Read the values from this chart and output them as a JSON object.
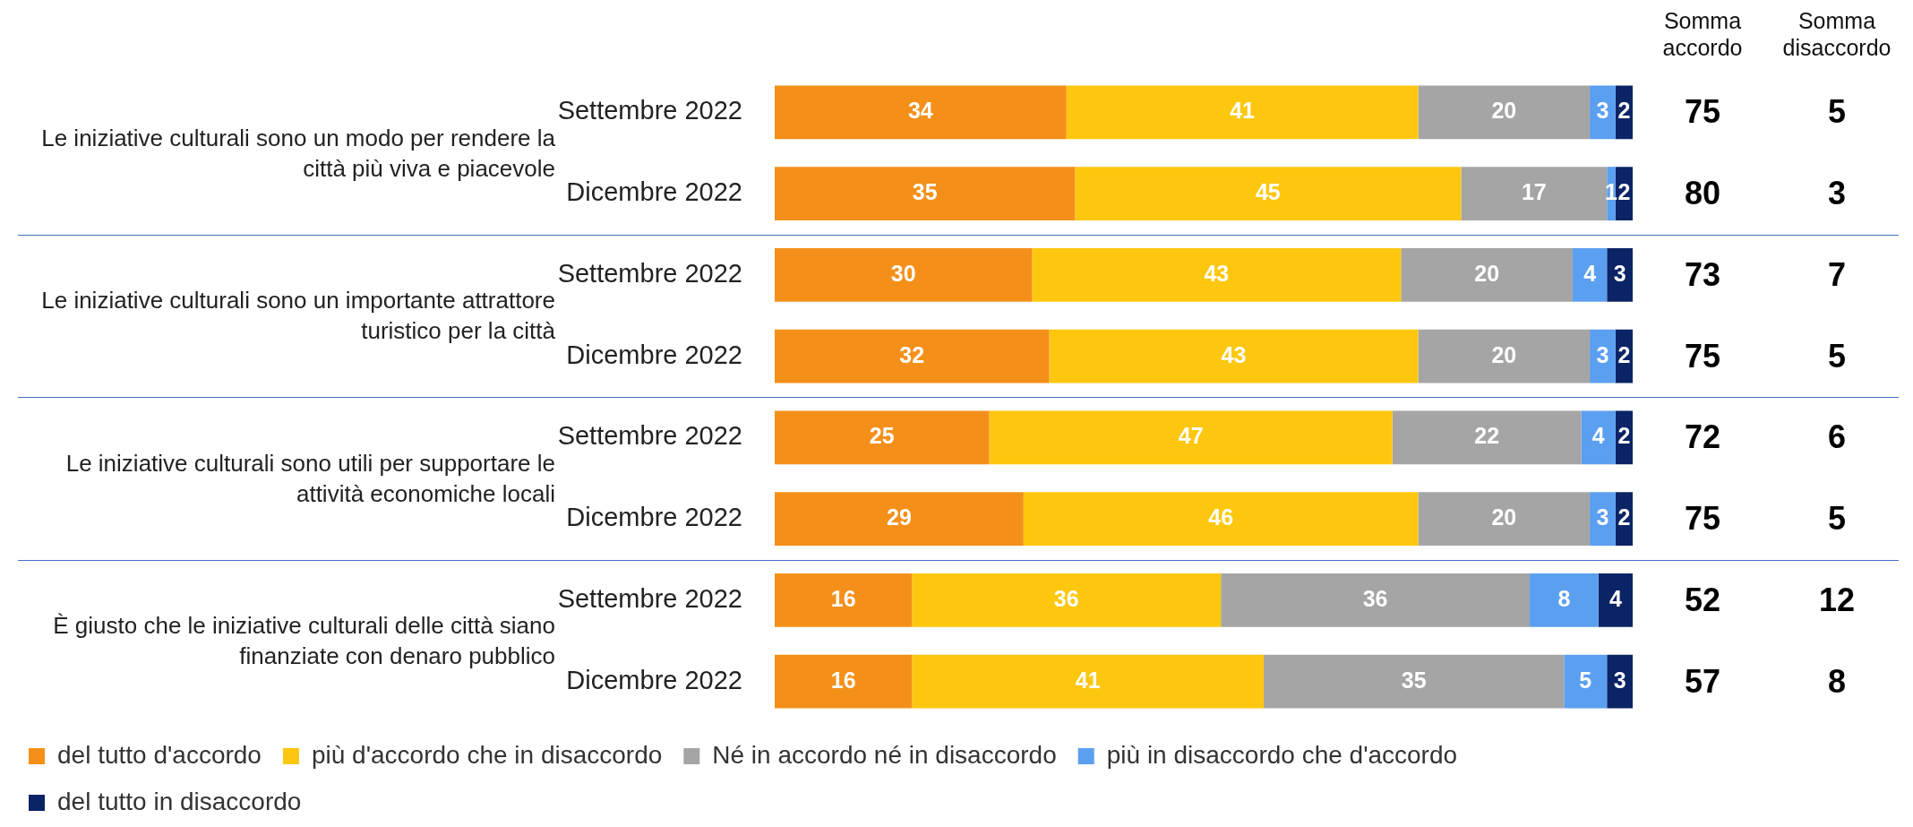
{
  "chart_data": {
    "type": "bar",
    "orientation": "horizontal",
    "stacked": true,
    "data_labels": true,
    "legend": "bottom",
    "tick_labels": "y",
    "categories": [
      "Settembre 2022",
      "Dicembre 2022",
      "Settembre 2022",
      "Dicembre 2022",
      "Settembre 2022",
      "Dicembre 2022",
      "Settembre 2022",
      "Dicembre 2022"
    ],
    "series": [
      {
        "name": "del tutto d'accordo",
        "color": "#f4901a",
        "values": [
          34,
          35,
          30,
          32,
          25,
          29,
          16,
          16
        ]
      },
      {
        "name": "più d'accordo che in disaccordo",
        "color": "#fec70f",
        "values": [
          41,
          45,
          43,
          43,
          47,
          46,
          36,
          41
        ]
      },
      {
        "name": "Né in accordo né in disaccordo",
        "color": "#a5a5a5",
        "values": [
          20,
          17,
          20,
          20,
          22,
          20,
          36,
          35
        ]
      },
      {
        "name": "più in disaccordo che d'accordo",
        "color": "#5b9ff0",
        "values": [
          3,
          1,
          4,
          3,
          4,
          3,
          8,
          5
        ]
      },
      {
        "name": "del tutto in disaccordo",
        "color": "#0a2465",
        "values": [
          2,
          2,
          3,
          2,
          2,
          2,
          4,
          3
        ]
      }
    ],
    "annotations": [
      "Le iniziative culturali sono un modo per rendere la città più viva e piacevole",
      "Le iniziative culturali sono un importante attrattore turistico per la città",
      "Le iniziative culturali sono utili per supportare le attività economiche locali",
      "È giusto che le iniziative culturali delle città siano finanziate con denaro pubblico",
      "Somma accordo",
      "Somma disaccordo",
      "75",
      "5",
      "80",
      "3",
      "73",
      "7",
      "75",
      "5",
      "72",
      "6",
      "75",
      "5",
      "52",
      "12",
      "57",
      "8"
    ]
  }
}
